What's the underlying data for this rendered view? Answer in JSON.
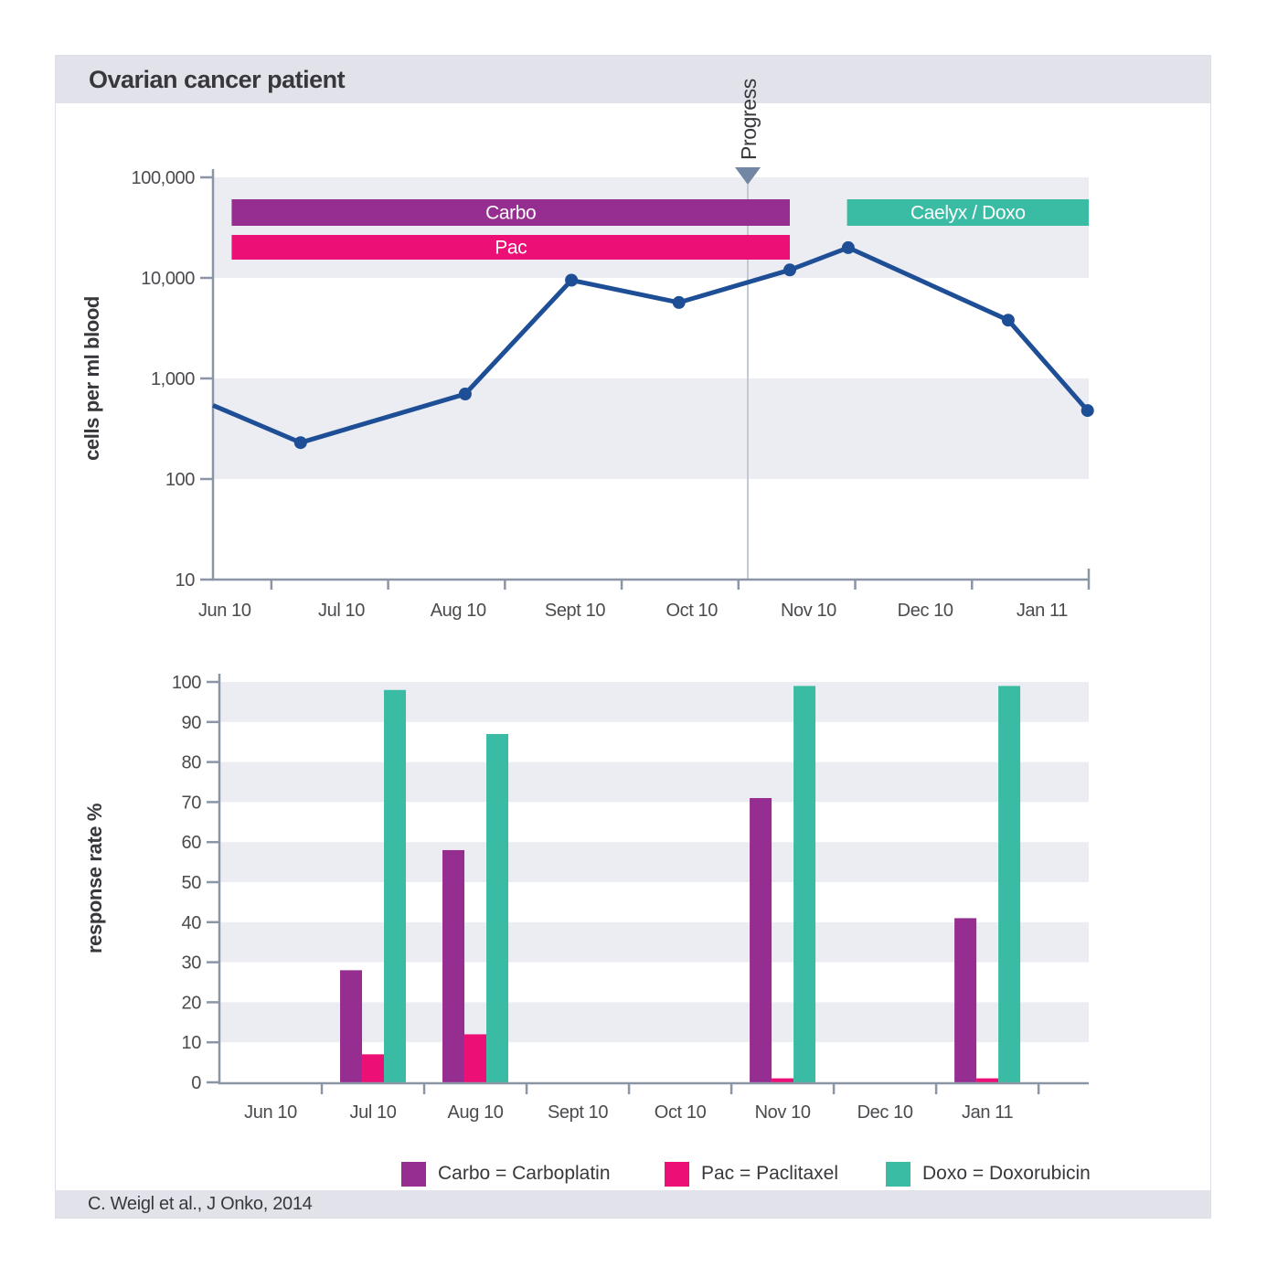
{
  "header": {
    "title": "Ovarian cancer patient"
  },
  "footer": {
    "citation": "C. Weigl et al., J Onko, 2014"
  },
  "colors": {
    "carbo": "#962D90",
    "pac": "#EC0F76",
    "doxo": "#3ABCA4",
    "line": "#1E4E96",
    "stripe": "#ECEDF3",
    "panel": "#E2E3EA",
    "axis": "#8A95A6",
    "tick_text": "#4B4B4F",
    "dark_text": "#38383C",
    "progress_line": "#C3C9D3",
    "progress_arrow": "#7187A3"
  },
  "chart_data": [
    {
      "type": "line",
      "ylabel": "cells per ml blood",
      "yscale": "log",
      "ylim": [
        10,
        100000
      ],
      "ytick_labels": [
        "100,000",
        "10,000",
        "1,000",
        "100",
        "10"
      ],
      "x_axis_note": "t = months after start of Jun 2010; ticks mark month boundaries",
      "xlim": [
        0.5,
        8.0
      ],
      "month_ticks": [
        1,
        2,
        3,
        4,
        5,
        6,
        7,
        8
      ],
      "month_labels": [
        "Jun 10",
        "Jul 10",
        "Aug 10",
        "Sept 10",
        "Oct 10",
        "Nov 10",
        "Dec 10",
        "Jan 11"
      ],
      "grid": "alternating decade stripes",
      "points": [
        {
          "t": 0.5,
          "cells": 540
        },
        {
          "t": 1.25,
          "cells": 230
        },
        {
          "t": 2.66,
          "cells": 700
        },
        {
          "t": 3.57,
          "cells": 9500
        },
        {
          "t": 4.49,
          "cells": 5700
        },
        {
          "t": 5.44,
          "cells": 12000
        },
        {
          "t": 5.94,
          "cells": 20000
        },
        {
          "t": 7.31,
          "cells": 3800
        },
        {
          "t": 7.99,
          "cells": 480
        }
      ],
      "treatment_bars": [
        {
          "label": "Carbo",
          "t0": 0.66,
          "t1": 5.44,
          "row": 0,
          "color_key": "carbo"
        },
        {
          "label": "Pac",
          "t0": 0.66,
          "t1": 5.44,
          "row": 1,
          "color_key": "pac"
        },
        {
          "label": "Caelyx / Doxo",
          "t0": 5.93,
          "t1": 8.0,
          "row": 0,
          "color_key": "doxo"
        }
      ],
      "annotation": {
        "label": "Progress",
        "t": 5.08
      }
    },
    {
      "type": "bar",
      "ylabel": "response rate %",
      "ylim": [
        0,
        100
      ],
      "ytick_labels": [
        "0",
        "10",
        "20",
        "30",
        "40",
        "50",
        "60",
        "70",
        "80",
        "90",
        "100"
      ],
      "categories": [
        "Jun 10",
        "Jul 10",
        "Aug 10",
        "Sept 10",
        "Oct 10",
        "Nov 10",
        "Dec 10",
        "Jan 11"
      ],
      "grid": "alternating 10% stripes",
      "legend_position": "bottom",
      "series": [
        {
          "name": "Carbo = Carboplatin",
          "color_key": "carbo",
          "values": [
            null,
            28,
            58,
            null,
            null,
            71,
            null,
            41
          ]
        },
        {
          "name": "Pac = Paclitaxel",
          "color_key": "pac",
          "values": [
            null,
            7,
            12,
            null,
            null,
            1,
            null,
            1
          ]
        },
        {
          "name": "Doxo = Doxorubicin",
          "color_key": "doxo",
          "values": [
            null,
            98,
            87,
            null,
            null,
            99,
            null,
            99
          ]
        }
      ]
    }
  ]
}
